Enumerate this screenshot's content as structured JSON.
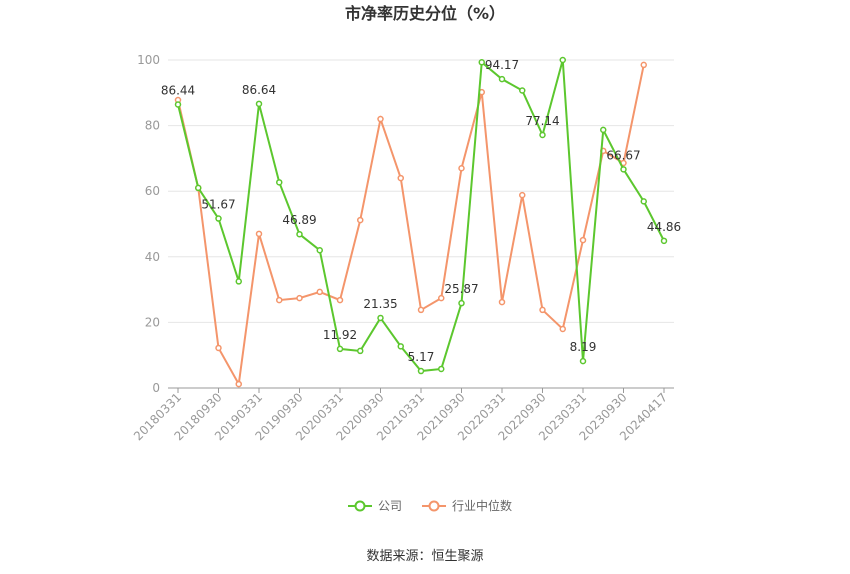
{
  "chart_data": {
    "type": "line",
    "title": "市净率历史分位（%）",
    "categories": [
      "20180331",
      null,
      "20180930",
      null,
      "20190331",
      null,
      "20190930",
      null,
      "20200331",
      null,
      "20200930",
      null,
      "20210331",
      null,
      "20210930",
      null,
      "20220331",
      null,
      "20220930",
      null,
      "20230331",
      null,
      "20230930",
      null,
      "20240417"
    ],
    "series": [
      {
        "name": "公司",
        "color": "#5cc72e",
        "values": [
          86.44,
          61,
          51.67,
          32.5,
          86.64,
          62.7,
          46.89,
          42,
          11.92,
          11.3,
          21.35,
          12.7,
          5.17,
          5.8,
          25.87,
          99.3,
          94.17,
          90.7,
          77.14,
          100,
          8.19,
          78.7,
          66.67,
          56.9,
          44.86
        ],
        "value_labels": [
          "86.44",
          null,
          "51.67",
          null,
          "86.64",
          null,
          "46.89",
          null,
          "11.92",
          null,
          "21.35",
          null,
          "5.17",
          null,
          "25.87",
          null,
          "94.17",
          null,
          "77.14",
          null,
          "8.19",
          null,
          "66.67",
          null,
          "44.86"
        ]
      },
      {
        "name": "行业中位数",
        "color": "#f4956b",
        "values": [
          87.8,
          61,
          12.2,
          1.2,
          47,
          26.8,
          27.4,
          29.3,
          26.8,
          51.2,
          82,
          64,
          23.8,
          27.4,
          67,
          90.2,
          26.2,
          58.8,
          23.8,
          18,
          45.1,
          72.3,
          68.6,
          98.5,
          null
        ]
      }
    ],
    "ylim": [
      0,
      100
    ],
    "yticks": [
      0,
      20,
      40,
      60,
      80,
      100
    ],
    "grid": true,
    "legend": "bottom",
    "source": "数据来源：恒生聚源"
  }
}
